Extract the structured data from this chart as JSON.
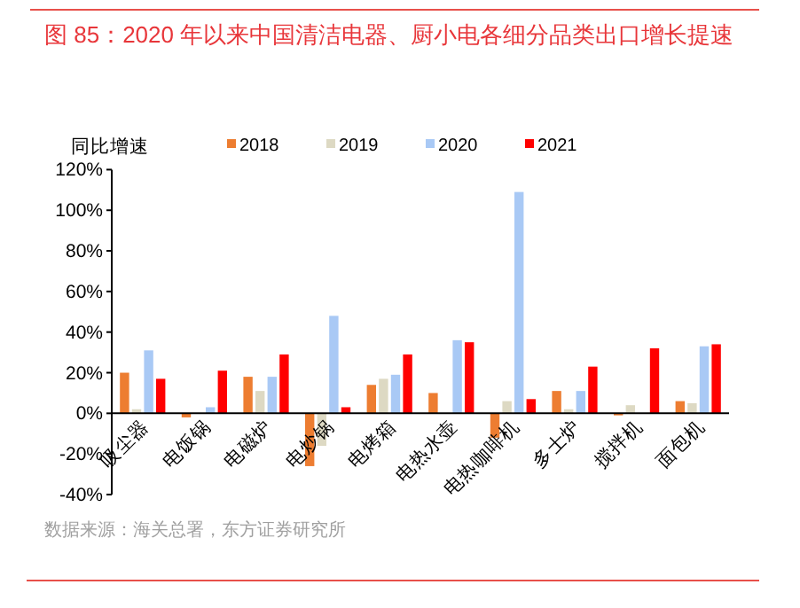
{
  "chart_data": {
    "type": "bar",
    "title": "图 85：2020 年以来中国清洁电器、厨小电各细分品类出口增长提速",
    "ylabel": "同比增速",
    "annotations": [
      "数据来源：海关总署，东方证券研究所"
    ],
    "categories": [
      "吸尘器",
      "电饭锅",
      "电磁炉",
      "电炒锅",
      "电烤箱",
      "电热水壶",
      "电热咖啡机",
      "多士炉",
      "搅拌机",
      "面包机"
    ],
    "series": [
      {
        "name": "2018",
        "color": "#ed7d31",
        "values": [
          20,
          -2,
          18,
          -26,
          14,
          10,
          -12,
          11,
          -1,
          6
        ]
      },
      {
        "name": "2019",
        "color": "#ddd9c3",
        "values": [
          2,
          null,
          11,
          -16,
          17,
          null,
          6,
          2,
          4,
          5
        ]
      },
      {
        "name": "2020",
        "color": "#a9c9f5",
        "values": [
          31,
          3,
          18,
          48,
          19,
          36,
          109,
          11,
          null,
          33
        ]
      },
      {
        "name": "2021",
        "color": "#ff0000",
        "values": [
          17,
          21,
          29,
          3,
          29,
          35,
          7,
          23,
          32,
          34
        ]
      }
    ],
    "ylim": [
      -40,
      120
    ],
    "yticks": [
      {
        "value": -40,
        "label": "-40%"
      },
      {
        "value": -20,
        "label": "-20%"
      },
      {
        "value": 0,
        "label": "0%"
      },
      {
        "value": 20,
        "label": "20%"
      },
      {
        "value": 40,
        "label": "40%"
      },
      {
        "value": 60,
        "label": "60%"
      },
      {
        "value": 80,
        "label": "80%"
      },
      {
        "value": 100,
        "label": "100%"
      },
      {
        "value": 120,
        "label": "120%"
      }
    ],
    "grid": false,
    "legend": "top"
  }
}
